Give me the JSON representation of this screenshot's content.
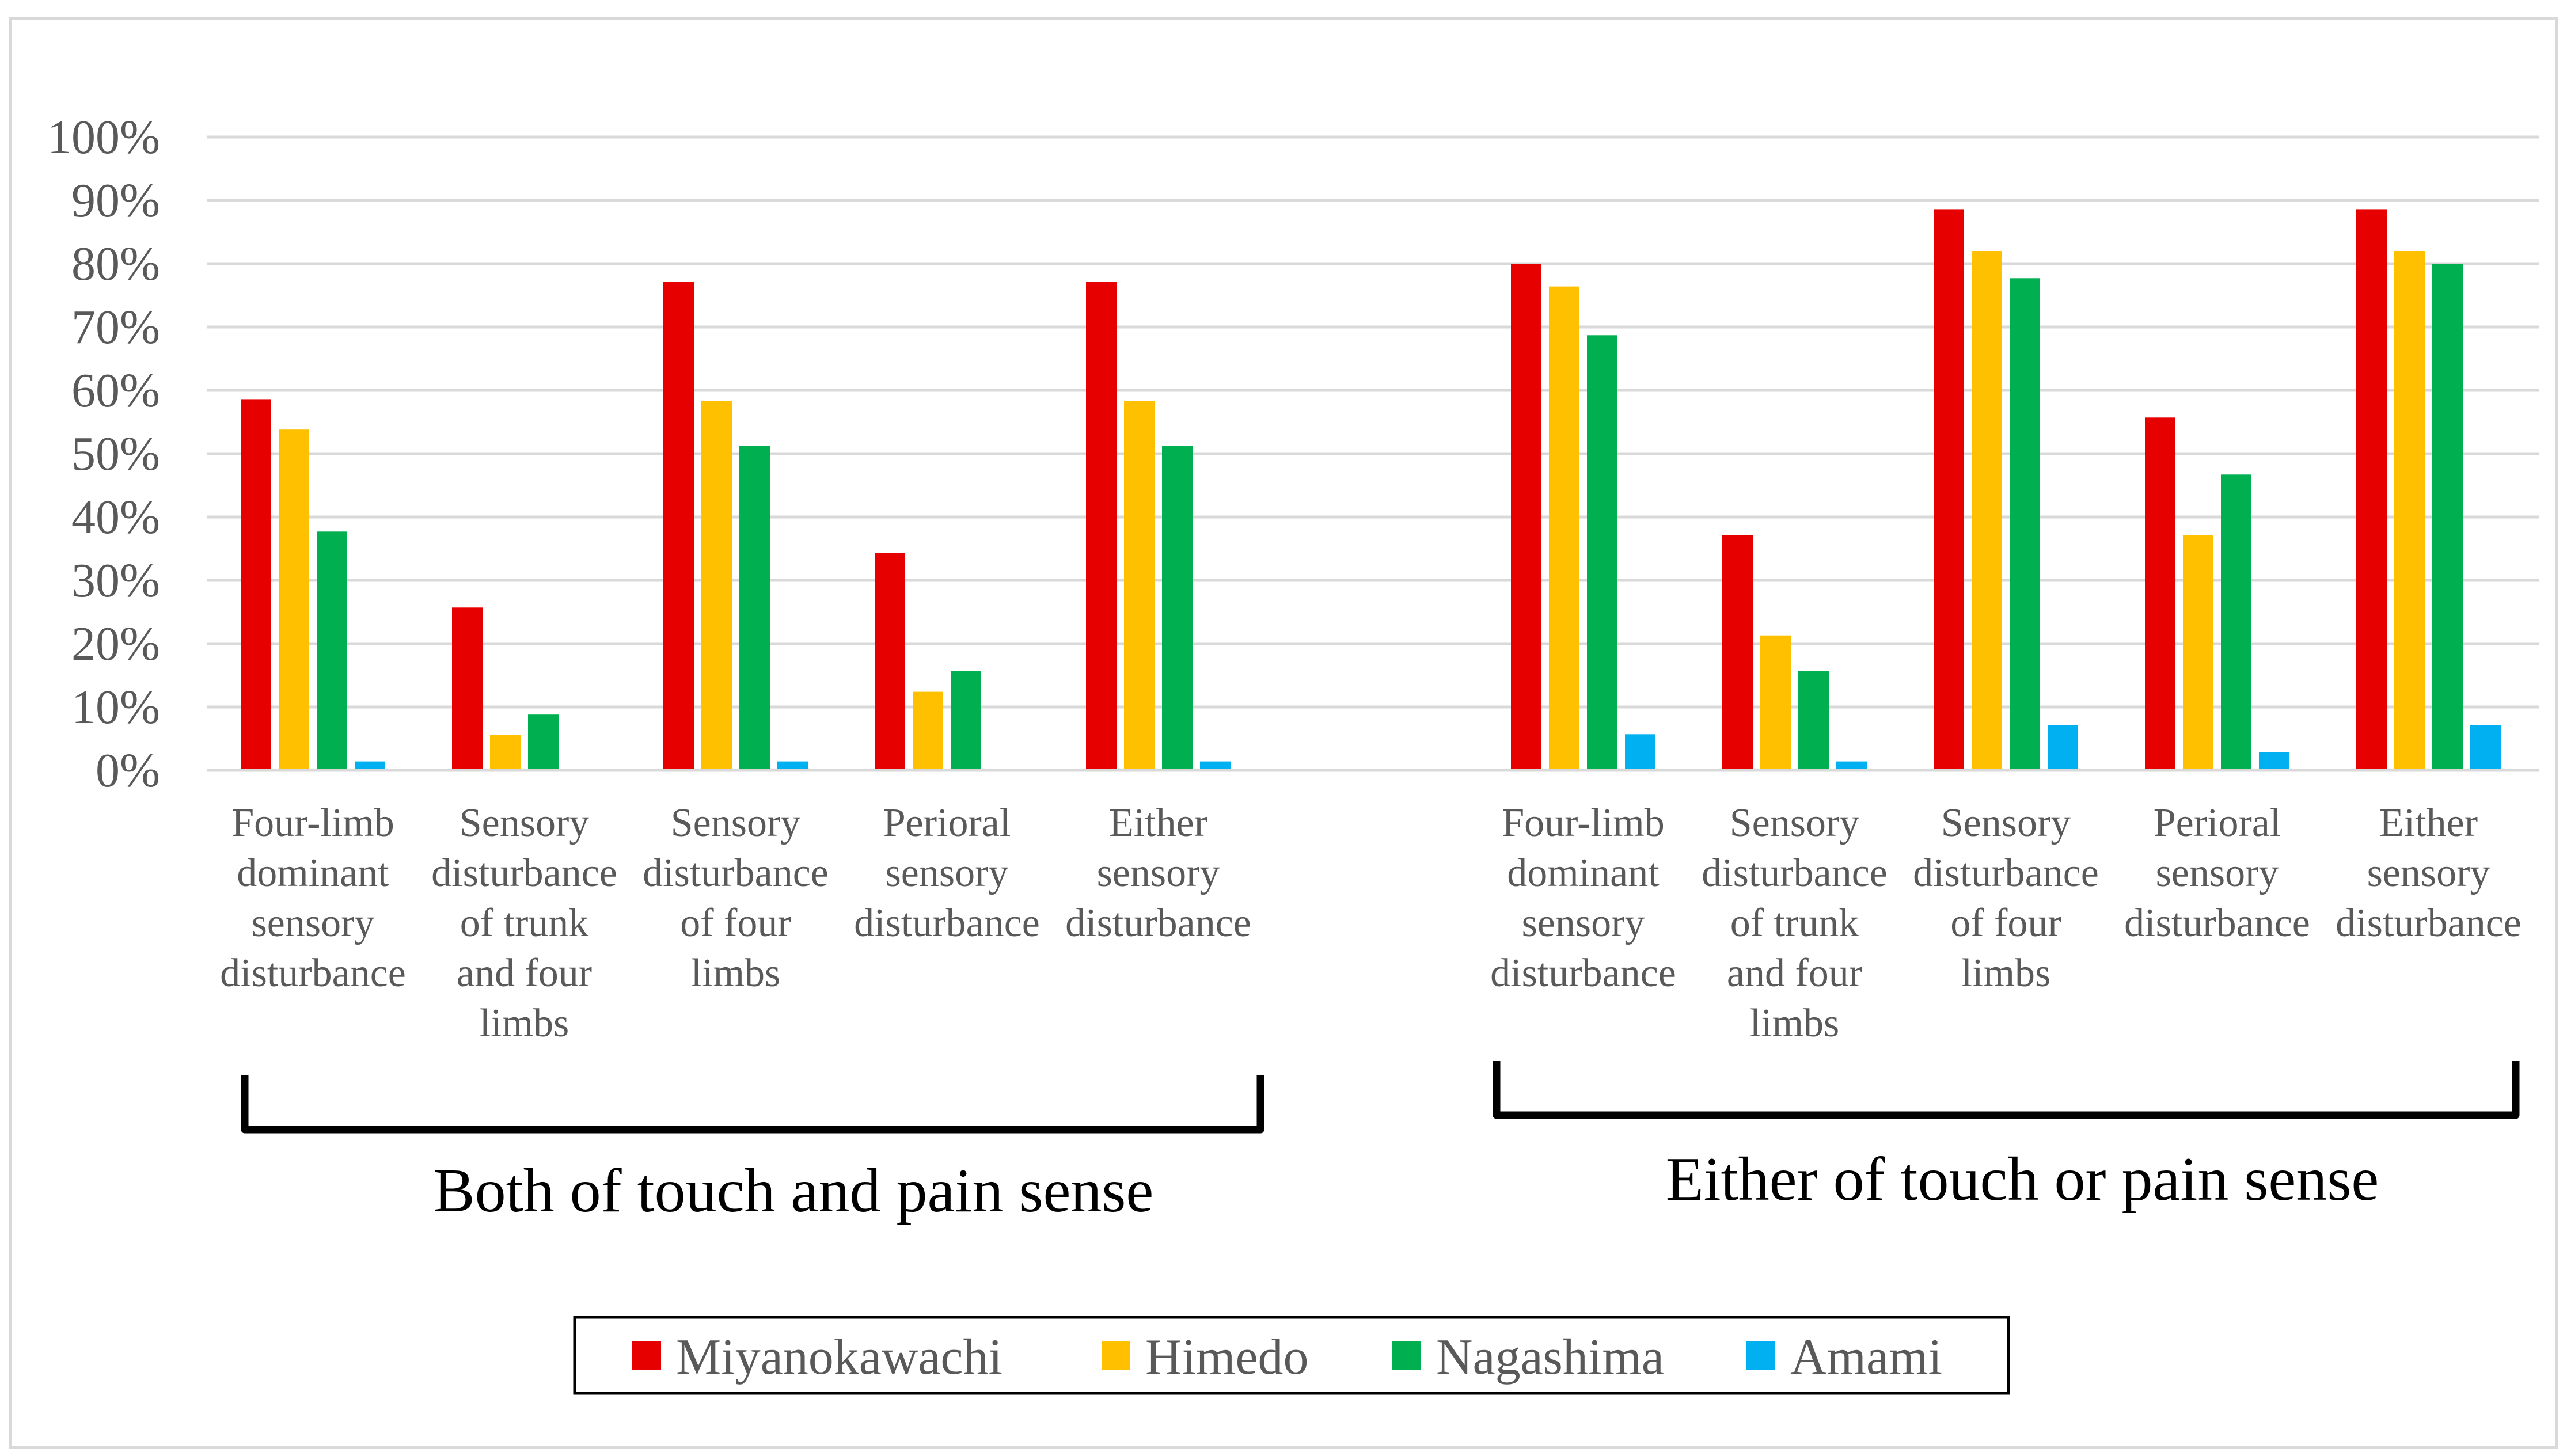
{
  "chart_data": {
    "type": "bar",
    "title": "",
    "xlabel": "",
    "ylabel": "",
    "ylim": [
      0,
      1
    ],
    "grid": true,
    "y_ticks": [
      "0%",
      "10%",
      "20%",
      "30%",
      "40%",
      "50%",
      "60%",
      "70%",
      "80%",
      "90%",
      "100%"
    ],
    "groups": [
      {
        "label": "Both of touch and pain sense",
        "categories": [
          [
            "Four-limb",
            "dominant",
            "sensory",
            "disturbance"
          ],
          [
            "Sensory",
            "disturbance",
            "of trunk",
            "and four",
            "limbs"
          ],
          [
            "Sensory",
            "disturbance",
            "of four",
            "limbs"
          ],
          [
            "Perioral",
            "sensory",
            "disturbance"
          ],
          [
            "Either",
            "sensory",
            "disturbance"
          ]
        ]
      },
      {
        "label": "Either of touch or pain sense",
        "categories": [
          [
            "Four-limb",
            "dominant",
            "sensory",
            "disturbance"
          ],
          [
            "Sensory",
            "disturbance",
            "of trunk",
            "and four",
            "limbs"
          ],
          [
            "Sensory",
            "disturbance",
            "of four",
            "limbs"
          ],
          [
            "Perioral",
            "sensory",
            "disturbance"
          ],
          [
            "Either",
            "sensory",
            "disturbance"
          ]
        ]
      }
    ],
    "series": [
      {
        "name": "Miyanokawachi",
        "color": "#E60000",
        "values": [
          0.586,
          0.257,
          0.771,
          0.343,
          0.771,
          0.8,
          0.371,
          0.886,
          0.557,
          0.886
        ]
      },
      {
        "name": "Himedo",
        "color": "#FFC000",
        "values": [
          0.538,
          0.056,
          0.583,
          0.124,
          0.583,
          0.764,
          0.213,
          0.82,
          0.371,
          0.82
        ]
      },
      {
        "name": "Nagashima",
        "color": "#00B050",
        "values": [
          0.377,
          0.088,
          0.512,
          0.157,
          0.512,
          0.687,
          0.157,
          0.777,
          0.467,
          0.8
        ]
      },
      {
        "name": "Amami",
        "color": "#00B0F0",
        "values": [
          0.014,
          0.0,
          0.014,
          0.0,
          0.014,
          0.057,
          0.014,
          0.071,
          0.029,
          0.071
        ]
      }
    ],
    "legend_position": "bottom"
  }
}
